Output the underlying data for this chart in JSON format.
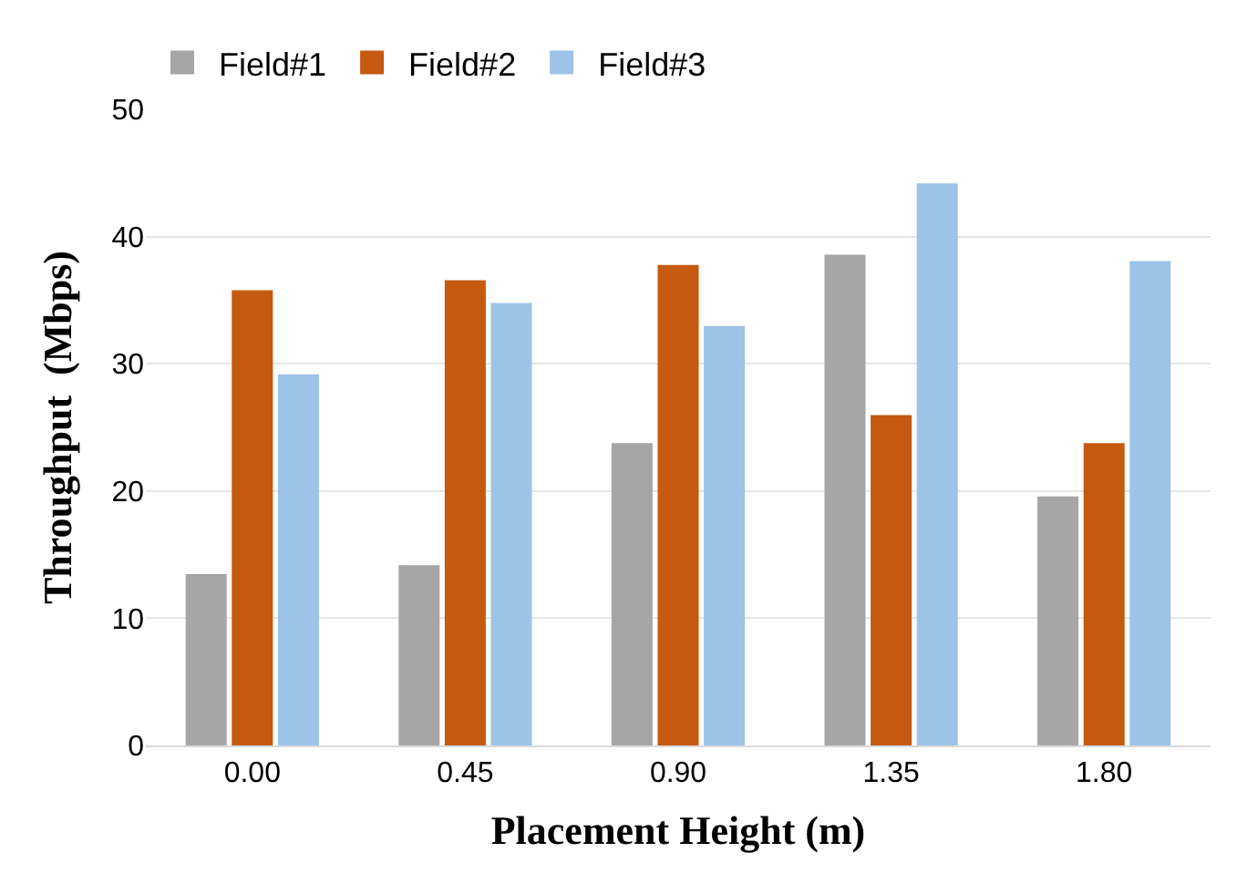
{
  "chart_data": {
    "type": "bar",
    "xlabel": "Placement Height (m)",
    "ylabel": "Throughput  (Mbps)",
    "categories": [
      "0.00",
      "0.45",
      "0.90",
      "1.35",
      "1.80"
    ],
    "series": [
      {
        "name": "Field#1",
        "color": "#a6a6a6",
        "values": [
          13.4,
          14.1,
          23.7,
          38.5,
          19.5
        ]
      },
      {
        "name": "Field#2",
        "color": "#c55a11",
        "values": [
          35.7,
          36.5,
          37.7,
          25.9,
          23.7
        ]
      },
      {
        "name": "Field#3",
        "color": "#9dc3e6",
        "values": [
          29.1,
          34.7,
          32.9,
          44.1,
          38.0
        ]
      }
    ],
    "ylim": [
      0,
      50
    ],
    "yticks": [
      0,
      10,
      20,
      30,
      40,
      50
    ],
    "grid": "y",
    "legend": "top left"
  }
}
